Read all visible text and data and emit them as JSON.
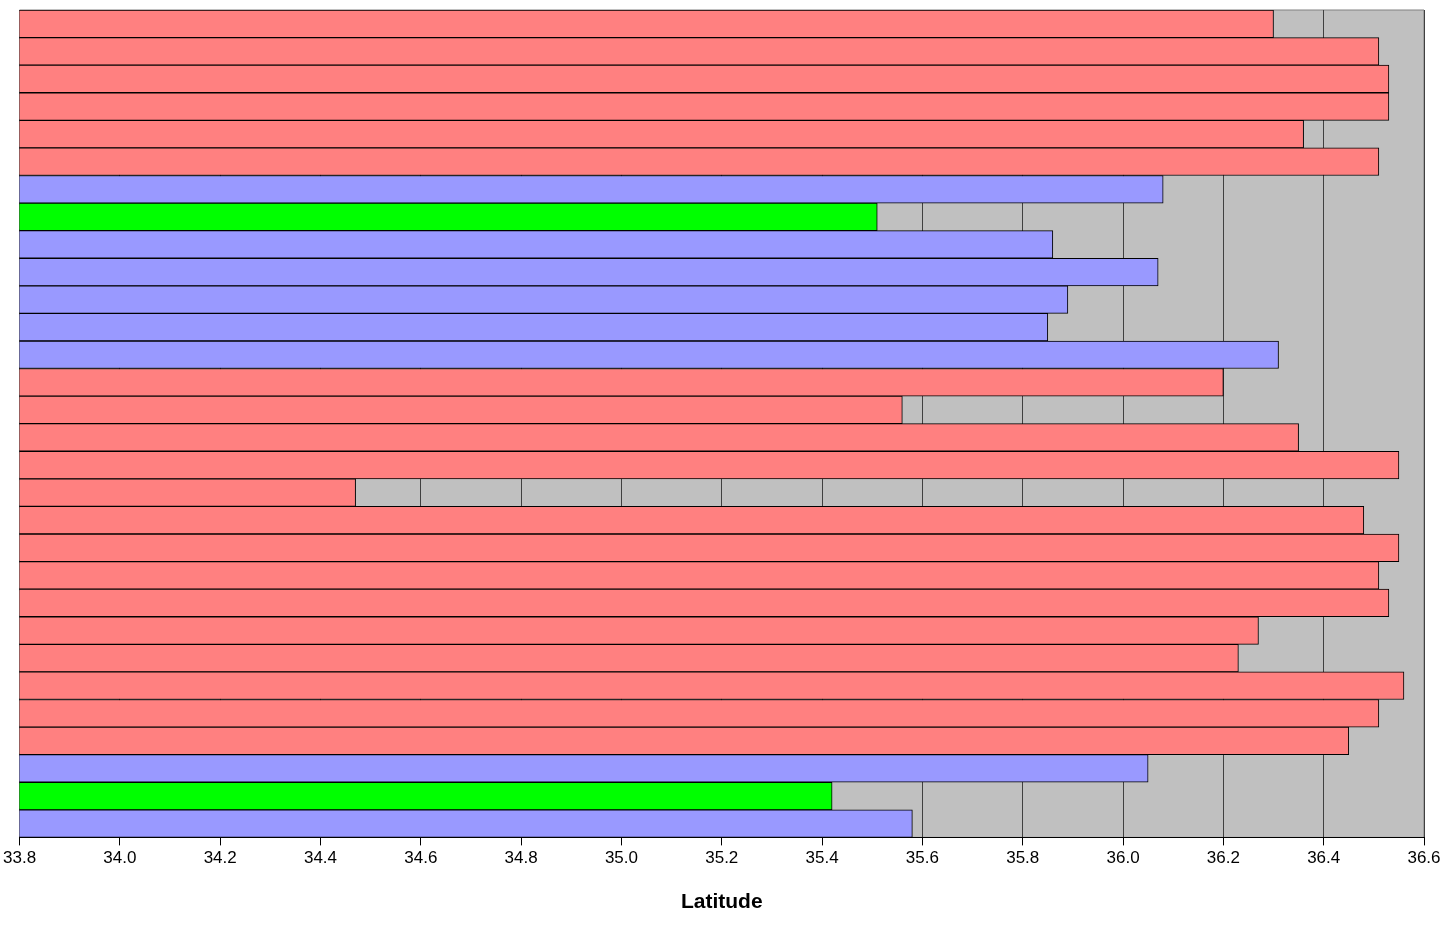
{
  "chart_data": {
    "type": "bar",
    "orientation": "horizontal",
    "xlabel": "Latitude",
    "categories": [
      null,
      null,
      null,
      null,
      null,
      null,
      null,
      null,
      null,
      null,
      null,
      null,
      null,
      null,
      null,
      null,
      null,
      null,
      null,
      null,
      null,
      null,
      null,
      null,
      null,
      null,
      null,
      null,
      null,
      null
    ],
    "values": [
      36.3,
      36.51,
      36.53,
      36.53,
      36.36,
      36.51,
      36.08,
      35.51,
      35.86,
      36.07,
      35.89,
      35.85,
      36.31,
      36.2,
      35.56,
      36.35,
      36.55,
      34.47,
      36.48,
      36.55,
      36.51,
      36.53,
      36.27,
      36.23,
      36.56,
      36.51,
      36.45,
      36.05,
      35.42,
      35.58
    ],
    "colors": [
      "#ff8080",
      "#ff8080",
      "#ff8080",
      "#ff8080",
      "#ff8080",
      "#ff8080",
      "#9999ff",
      "#00ff00",
      "#9999ff",
      "#9999ff",
      "#9999ff",
      "#9999ff",
      "#9999ff",
      "#ff8080",
      "#ff8080",
      "#ff8080",
      "#ff8080",
      "#ff8080",
      "#ff8080",
      "#ff8080",
      "#ff8080",
      "#ff8080",
      "#ff8080",
      "#ff8080",
      "#ff8080",
      "#ff8080",
      "#ff8080",
      "#9999ff",
      "#00ff00",
      "#9999ff"
    ],
    "xlim": [
      33.8,
      36.6
    ],
    "xticks": [
      33.8,
      {
        "value": 34,
        "label": "34.0"
      },
      34.2,
      34.4,
      34.6,
      34.8,
      {
        "value": 35,
        "label": "35.0"
      },
      35.2,
      35.4,
      35.6,
      35.8,
      {
        "value": 36,
        "label": "36.0"
      },
      36.2,
      36.4,
      36.6
    ],
    "grid": "x",
    "tick_labels": "x",
    "legend": false
  }
}
